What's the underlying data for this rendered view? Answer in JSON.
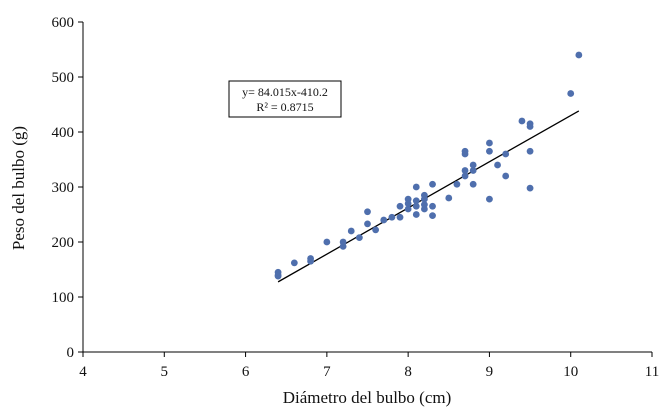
{
  "chart_data": {
    "type": "scatter",
    "xlabel": "Diámetro del bulbo  (cm)",
    "ylabel": "Peso del bulbo  (g)",
    "xlim": [
      4,
      11
    ],
    "ylim": [
      0,
      600
    ],
    "x_ticks": [
      4,
      5,
      6,
      7,
      8,
      9,
      10,
      11
    ],
    "y_ticks": [
      0,
      100,
      200,
      300,
      400,
      500,
      600
    ],
    "x_tick_labels": [
      "4",
      "5",
      "6",
      "7",
      "8",
      "9",
      "10",
      "11"
    ],
    "y_tick_labels": [
      "0",
      "100",
      "200",
      "300",
      "400",
      "500",
      "600"
    ],
    "grid": false,
    "legend": "none",
    "marker_color": "#4f6fad",
    "trendline_color": "#000000",
    "annotation": {
      "equation": "y= 84.015x-410.2",
      "r_squared": "R² = 0.8715"
    },
    "trendline": {
      "slope": 84.015,
      "intercept": -410.2,
      "x_range": [
        6.4,
        10.1
      ]
    },
    "points": [
      [
        6.4,
        140
      ],
      [
        6.4,
        145
      ],
      [
        6.4,
        138
      ],
      [
        6.6,
        162
      ],
      [
        6.8,
        165
      ],
      [
        6.8,
        170
      ],
      [
        7.0,
        200
      ],
      [
        7.2,
        192
      ],
      [
        7.2,
        200
      ],
      [
        7.3,
        220
      ],
      [
        7.4,
        208
      ],
      [
        7.5,
        233
      ],
      [
        7.5,
        255
      ],
      [
        7.6,
        222
      ],
      [
        7.7,
        240
      ],
      [
        7.8,
        245
      ],
      [
        7.9,
        245
      ],
      [
        7.9,
        265
      ],
      [
        8.0,
        260
      ],
      [
        8.0,
        270
      ],
      [
        8.0,
        278
      ],
      [
        8.1,
        250
      ],
      [
        8.1,
        265
      ],
      [
        8.1,
        275
      ],
      [
        8.1,
        300
      ],
      [
        8.2,
        260
      ],
      [
        8.2,
        268
      ],
      [
        8.2,
        278
      ],
      [
        8.2,
        285
      ],
      [
        8.3,
        248
      ],
      [
        8.3,
        265
      ],
      [
        8.3,
        305
      ],
      [
        8.5,
        280
      ],
      [
        8.6,
        305
      ],
      [
        8.7,
        320
      ],
      [
        8.7,
        330
      ],
      [
        8.7,
        360
      ],
      [
        8.7,
        365
      ],
      [
        8.8,
        305
      ],
      [
        8.8,
        330
      ],
      [
        8.8,
        340
      ],
      [
        9.0,
        278
      ],
      [
        9.0,
        365
      ],
      [
        9.0,
        380
      ],
      [
        9.1,
        340
      ],
      [
        9.2,
        320
      ],
      [
        9.2,
        360
      ],
      [
        9.4,
        420
      ],
      [
        9.5,
        298
      ],
      [
        9.5,
        365
      ],
      [
        9.5,
        410
      ],
      [
        9.5,
        415
      ],
      [
        10.0,
        470
      ],
      [
        10.1,
        540
      ]
    ]
  }
}
